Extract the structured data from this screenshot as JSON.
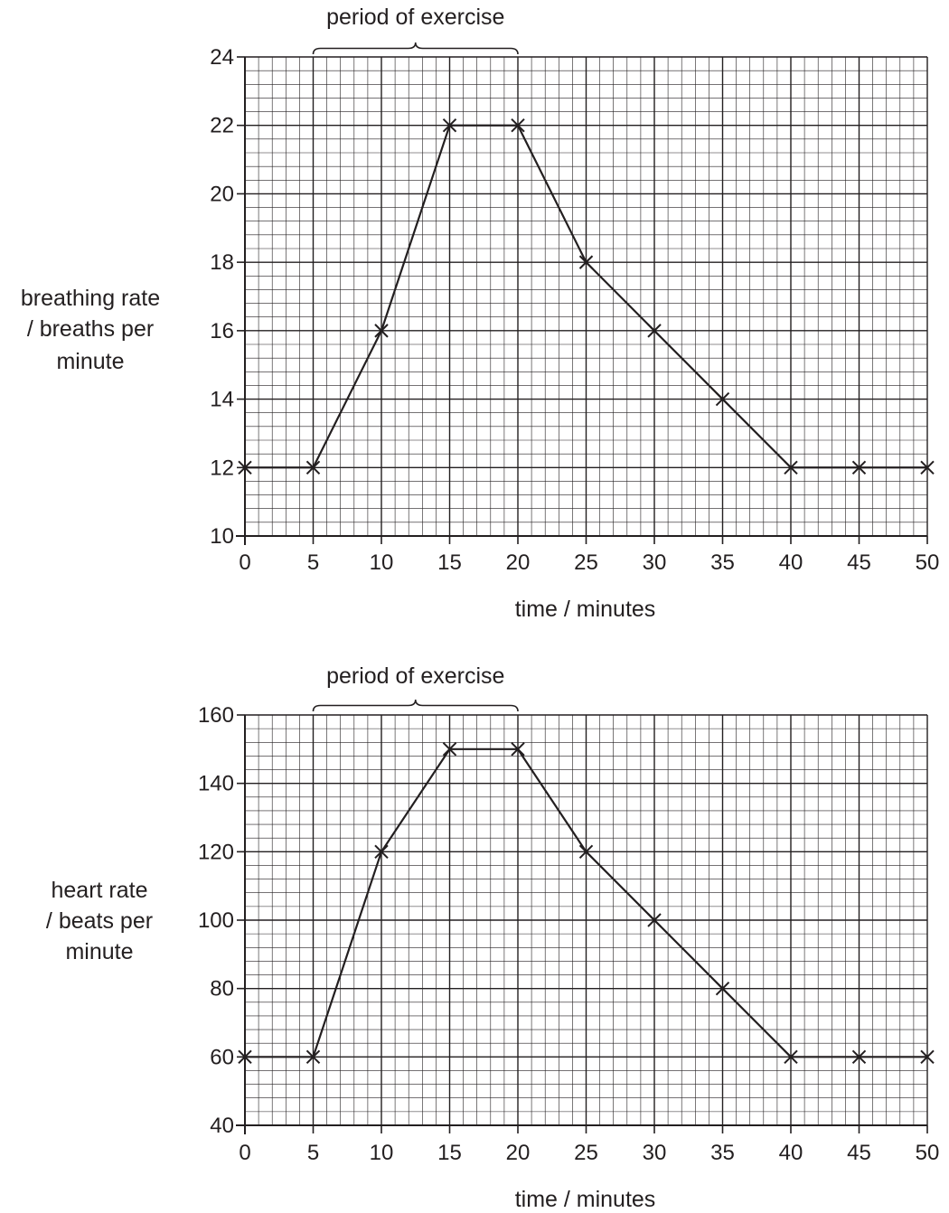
{
  "chart_data": [
    {
      "type": "line",
      "annotation": "period of exercise",
      "annotation_range": [
        5,
        20
      ],
      "xlabel": "time / minutes",
      "ylabel": [
        "breathing rate",
        "/ breaths per",
        "minute"
      ],
      "xlim": [
        0,
        50
      ],
      "ylim": [
        10,
        24
      ],
      "x_ticks": [
        0,
        5,
        10,
        15,
        20,
        25,
        30,
        35,
        40,
        45,
        50
      ],
      "y_ticks": [
        10,
        12,
        14,
        16,
        18,
        20,
        22,
        24
      ],
      "x_minor_step": 1,
      "y_minor_step": 0.4,
      "grid": true,
      "marker": "cross",
      "series": [
        {
          "x": [
            0,
            5,
            10,
            15,
            20,
            25,
            30,
            35,
            40,
            45,
            50
          ],
          "y": [
            12,
            12,
            16,
            22,
            22,
            18,
            16,
            14,
            12,
            12,
            12
          ]
        }
      ]
    },
    {
      "type": "line",
      "annotation": "period of exercise",
      "annotation_range": [
        5,
        20
      ],
      "xlabel": "time / minutes",
      "ylabel": [
        "heart rate",
        "/ beats per",
        "minute"
      ],
      "xlim": [
        0,
        50
      ],
      "ylim": [
        40,
        160
      ],
      "x_ticks": [
        0,
        5,
        10,
        15,
        20,
        25,
        30,
        35,
        40,
        45,
        50
      ],
      "y_ticks": [
        40,
        60,
        80,
        100,
        120,
        140,
        160
      ],
      "x_minor_step": 1,
      "y_minor_step": 4,
      "grid": true,
      "marker": "cross",
      "series": [
        {
          "x": [
            0,
            5,
            10,
            15,
            20,
            25,
            30,
            35,
            40,
            45,
            50
          ],
          "y": [
            60,
            60,
            120,
            150,
            150,
            120,
            100,
            80,
            60,
            60,
            60
          ]
        }
      ]
    }
  ]
}
